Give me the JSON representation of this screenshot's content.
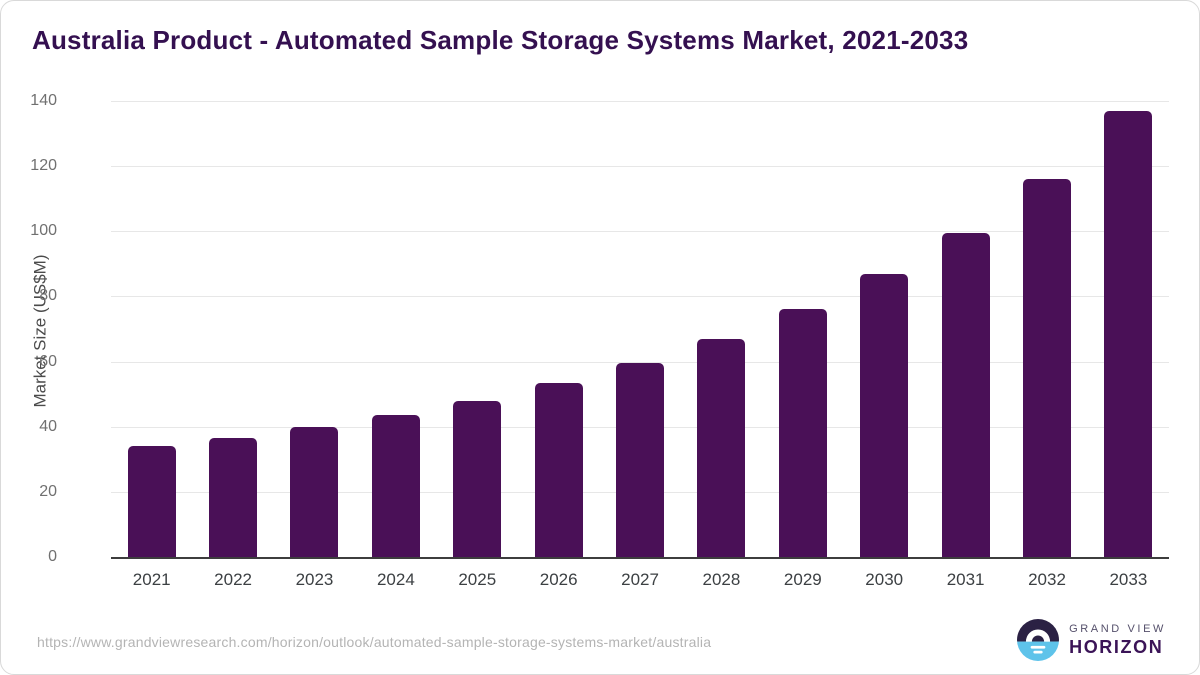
{
  "title": "Australia Product - Automated Sample Storage Systems Market, 2021-2033",
  "chart_data": {
    "type": "bar",
    "title": "Australia Product - Automated Sample Storage Systems Market, 2021-2033",
    "categories": [
      "2021",
      "2022",
      "2023",
      "2024",
      "2025",
      "2026",
      "2027",
      "2028",
      "2029",
      "2030",
      "2031",
      "2032",
      "2033"
    ],
    "values": [
      34,
      36.5,
      40,
      43.5,
      48,
      53.5,
      59.5,
      67,
      76,
      87,
      99.5,
      116,
      137
    ],
    "xlabel": "",
    "ylabel": "Market Size (US$M)",
    "ylim": [
      0,
      140
    ],
    "yticks": [
      0,
      20,
      40,
      60,
      80,
      100,
      120,
      140
    ],
    "grid": true,
    "legend_position": "none",
    "bar_color": "#4a1057"
  },
  "colors": {
    "title": "#341050",
    "bar": "#4a1057",
    "gridline": "#e7e7e7",
    "axis_line": "#3d3d3d",
    "y_tick": "#707070",
    "x_tick": "#3c4043",
    "url_text": "#b4b4b4",
    "logo_dark_half": "#2b2144",
    "logo_blue_half": "#5ec3ea",
    "logo_horizon_text": "#3b1457"
  },
  "footer": {
    "url": "https://www.grandviewresearch.com/horizon/outlook/automated-sample-storage-systems-market/australia",
    "logo_line1": "GRAND VIEW",
    "logo_line2": "HORIZON"
  }
}
